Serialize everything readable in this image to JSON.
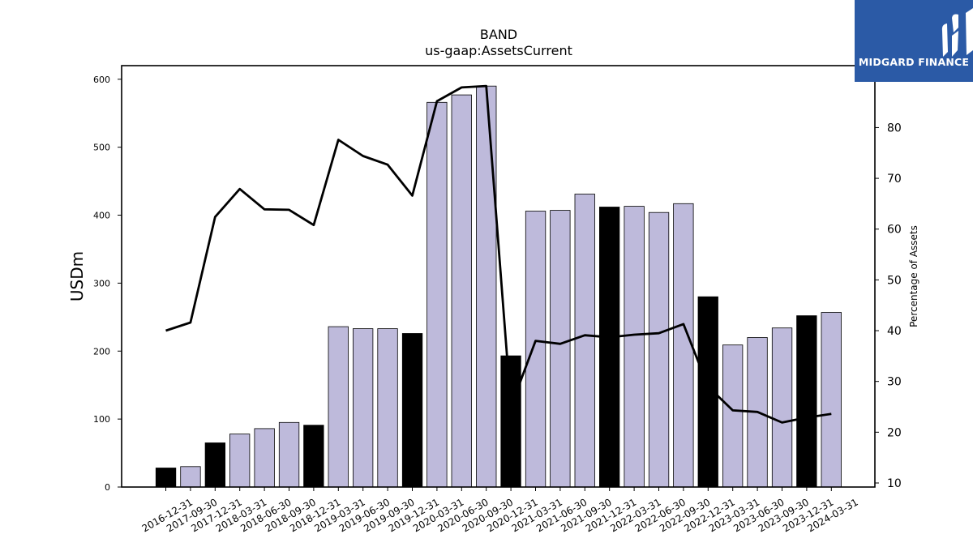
{
  "logo": {
    "text": "MIDGARD FINANCE"
  },
  "chart_data": {
    "type": "bar",
    "title": "BAND",
    "subtitle": "us-gaap:AssetsCurrent",
    "ylabel": "USDm",
    "y2label": "Percentage of Assets",
    "ylim": [
      0,
      620
    ],
    "y2lim": [
      9.2,
      92.2
    ],
    "yticks": [
      0,
      100,
      200,
      300,
      400,
      500,
      600
    ],
    "y2ticks": [
      10,
      20,
      30,
      40,
      50,
      60,
      70,
      80
    ],
    "colors": {
      "annual": "#000000",
      "quarterly": "#bebadb",
      "line": "#000000"
    },
    "categories": [
      "2016-12-31",
      "2017-09-30",
      "2017-12-31",
      "2018-03-31",
      "2018-06-30",
      "2018-09-30",
      "2018-12-31",
      "2019-03-31",
      "2019-06-30",
      "2019-09-30",
      "2019-12-31",
      "2020-03-31",
      "2020-06-30",
      "2020-09-30",
      "2020-12-31",
      "2021-03-31",
      "2021-06-30",
      "2021-09-30",
      "2021-12-31",
      "2022-03-31",
      "2022-06-30",
      "2022-09-30",
      "2022-12-31",
      "2023-03-31",
      "2023-06-30",
      "2023-09-30",
      "2023-12-31",
      "2024-03-31"
    ],
    "series": [
      {
        "values": [
          28,
          30,
          65,
          78,
          86,
          95,
          91,
          236,
          233,
          233,
          226,
          566,
          577,
          590,
          193,
          406,
          407,
          431,
          412,
          413,
          404,
          417,
          280,
          209,
          220,
          234,
          252,
          257
        ],
        "annual": [
          true,
          false,
          true,
          false,
          false,
          false,
          true,
          false,
          false,
          false,
          true,
          false,
          false,
          false,
          true,
          false,
          false,
          false,
          true,
          false,
          false,
          false,
          true,
          false,
          false,
          false,
          true,
          false
        ]
      },
      {
        "axis": "right",
        "values": [
          40.0,
          41.6,
          62.4,
          67.9,
          63.9,
          63.8,
          60.8,
          77.6,
          74.4,
          72.7,
          66.6,
          85.2,
          87.9,
          88.2,
          25.0,
          38.0,
          37.4,
          39.1,
          38.7,
          39.2,
          39.5,
          41.3,
          29.0,
          24.3,
          24.0,
          21.9,
          22.9,
          23.6
        ]
      }
    ]
  }
}
